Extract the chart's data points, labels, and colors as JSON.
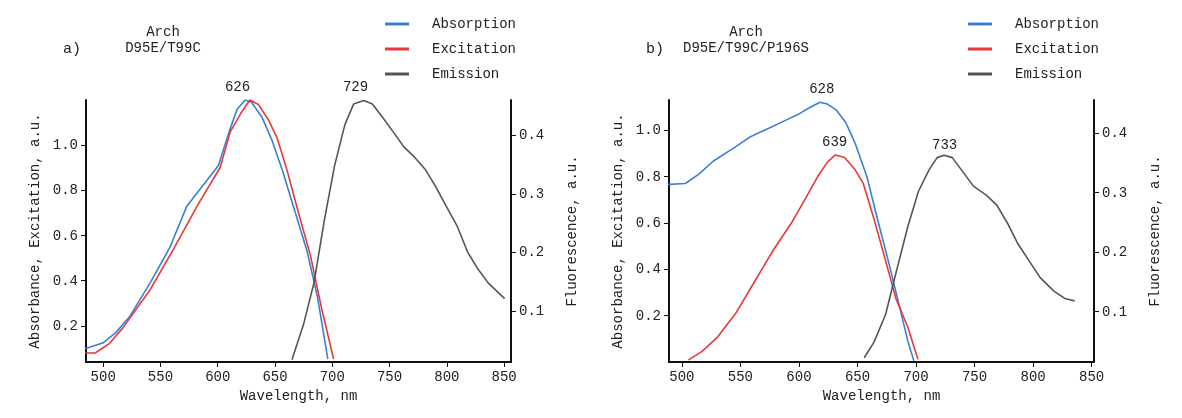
{
  "chart_data": [
    {
      "type": "line",
      "title": "Arch",
      "subtitle": "D95E/T99C",
      "xlabel": "Wavelength, nm",
      "ylabel": "Absorbance, Excitation, a.u.",
      "y2label": "Fluorescence, a.u.",
      "annotations": [
        "a)",
        {
          "text": "626",
          "x": 626,
          "y": 1.2
        },
        {
          "text": "729",
          "x": 729,
          "y": 1.2
        }
      ],
      "xlim": [
        485,
        856
      ],
      "xticks": [
        500,
        550,
        600,
        650,
        700,
        750,
        800,
        850
      ],
      "ylim": [
        0.04,
        1.2
      ],
      "yticks": [
        0.2,
        0.4,
        0.6,
        0.8,
        {
          "value": 1,
          "label": "1.0"
        }
      ],
      "y2lim": [
        0.013,
        0.46
      ],
      "y2ticks": [
        0.1,
        0.2,
        0.3,
        0.4
      ],
      "grid": false,
      "legend": "top right",
      "marker": "none",
      "line_style": "solid",
      "series": [
        {
          "name": "Absorption",
          "color": "#3a7fd5",
          "x": [
            485,
            500,
            511,
            523,
            541,
            558,
            573,
            600.6,
            610,
            617,
            624,
            629.5,
            638.5,
            647.5,
            657,
            666,
            678,
            687,
            696
          ],
          "values": [
            0.1,
            0.125,
            0.17,
            0.24,
            0.39,
            0.545,
            0.73,
            0.91,
            1.06,
            1.16,
            1.2,
            1.19,
            1.125,
            1.02,
            0.88,
            0.73,
            0.53,
            0.33,
            0.056
          ]
        },
        {
          "name": "Excitation",
          "color": "#e8383a",
          "x": [
            485,
            493,
            505,
            517,
            541,
            562,
            582,
            602,
            611,
            620,
            628,
            635.5,
            644.5,
            652,
            661,
            670,
            681,
            691,
            701
          ],
          "values": [
            0.08,
            0.08,
            0.12,
            0.19,
            0.36,
            0.545,
            0.73,
            0.9,
            1.06,
            1.14,
            1.2,
            1.18,
            1.11,
            1.03,
            0.88,
            0.71,
            0.51,
            0.27,
            0.056
          ]
        },
        {
          "name": "Emission",
          "color": "#555555",
          "axis": "y2",
          "x": [
            665,
            675,
            684,
            693,
            702,
            711,
            718.6,
            727.5,
            735,
            744,
            753,
            762.5,
            772,
            781,
            790,
            800,
            809,
            818,
            827,
            836,
            850
          ],
          "values": [
            0.018,
            0.078,
            0.148,
            0.254,
            0.348,
            0.418,
            0.453,
            0.459,
            0.453,
            0.43,
            0.406,
            0.38,
            0.362,
            0.342,
            0.313,
            0.277,
            0.245,
            0.201,
            0.172,
            0.148,
            0.122
          ]
        }
      ]
    },
    {
      "type": "line",
      "title": "Arch",
      "subtitle": "D95E/T99C/P196S",
      "xlabel": "Wavelength, nm",
      "ylabel": "Absorbance, Excitation, a.u.",
      "y2label": "Fluorescence, a.u.",
      "annotations": [
        "b)",
        {
          "text": "628",
          "x": 628,
          "y": 1.12
        },
        {
          "text": "639",
          "x": 639,
          "y": 0.893
        },
        {
          "text": "733",
          "x": 733,
          "y": 0.878
        }
      ],
      "xlim": [
        489,
        852
      ],
      "xticks": [
        500,
        550,
        600,
        650,
        700,
        750,
        800,
        850
      ],
      "ylim": [
        0,
        1.13
      ],
      "yticks": [
        0.2,
        0.4,
        0.6,
        0.8,
        {
          "value": 1,
          "label": "1.0"
        }
      ],
      "y2lim": [
        0.015,
        0.456
      ],
      "y2ticks": [
        0.1,
        0.2,
        0.3,
        0.4
      ],
      "grid": false,
      "legend": "top right",
      "marker": "none",
      "line_style": "solid",
      "series": [
        {
          "name": "Absorption",
          "color": "#3a7fd5",
          "x": [
            489,
            503,
            514.5,
            527,
            543.5,
            559,
            572,
            587.5,
            600,
            610,
            618,
            624,
            632,
            640,
            648,
            658,
            667,
            677,
            686.5,
            693,
            698
          ],
          "values": [
            0.766,
            0.77,
            0.81,
            0.867,
            0.92,
            0.973,
            1.003,
            1.04,
            1.07,
            1.1,
            1.12,
            1.113,
            1.086,
            1.033,
            0.943,
            0.8,
            0.618,
            0.422,
            0.226,
            0.09,
            0.007
          ]
        },
        {
          "name": "Excitation",
          "color": "#e8383a",
          "x": [
            506,
            517,
            530,
            546,
            562,
            578,
            594,
            606,
            616,
            624,
            631,
            639,
            648,
            655,
            664,
            674,
            683,
            693,
            701.5
          ],
          "values": [
            0.01,
            0.045,
            0.105,
            0.21,
            0.346,
            0.482,
            0.603,
            0.709,
            0.8,
            0.86,
            0.893,
            0.882,
            0.829,
            0.769,
            0.618,
            0.437,
            0.271,
            0.15,
            0.014
          ]
        },
        {
          "name": "Emission",
          "color": "#555555",
          "axis": "y2",
          "x": [
            656,
            664,
            674,
            683,
            693,
            702,
            711,
            718,
            724,
            731,
            740,
            749,
            760,
            769,
            778,
            787,
            797,
            806,
            818,
            827,
            835
          ],
          "values": [
            0.023,
            0.048,
            0.095,
            0.166,
            0.243,
            0.302,
            0.338,
            0.359,
            0.363,
            0.359,
            0.335,
            0.311,
            0.296,
            0.279,
            0.249,
            0.214,
            0.184,
            0.157,
            0.134,
            0.122,
            0.118
          ]
        }
      ]
    }
  ]
}
